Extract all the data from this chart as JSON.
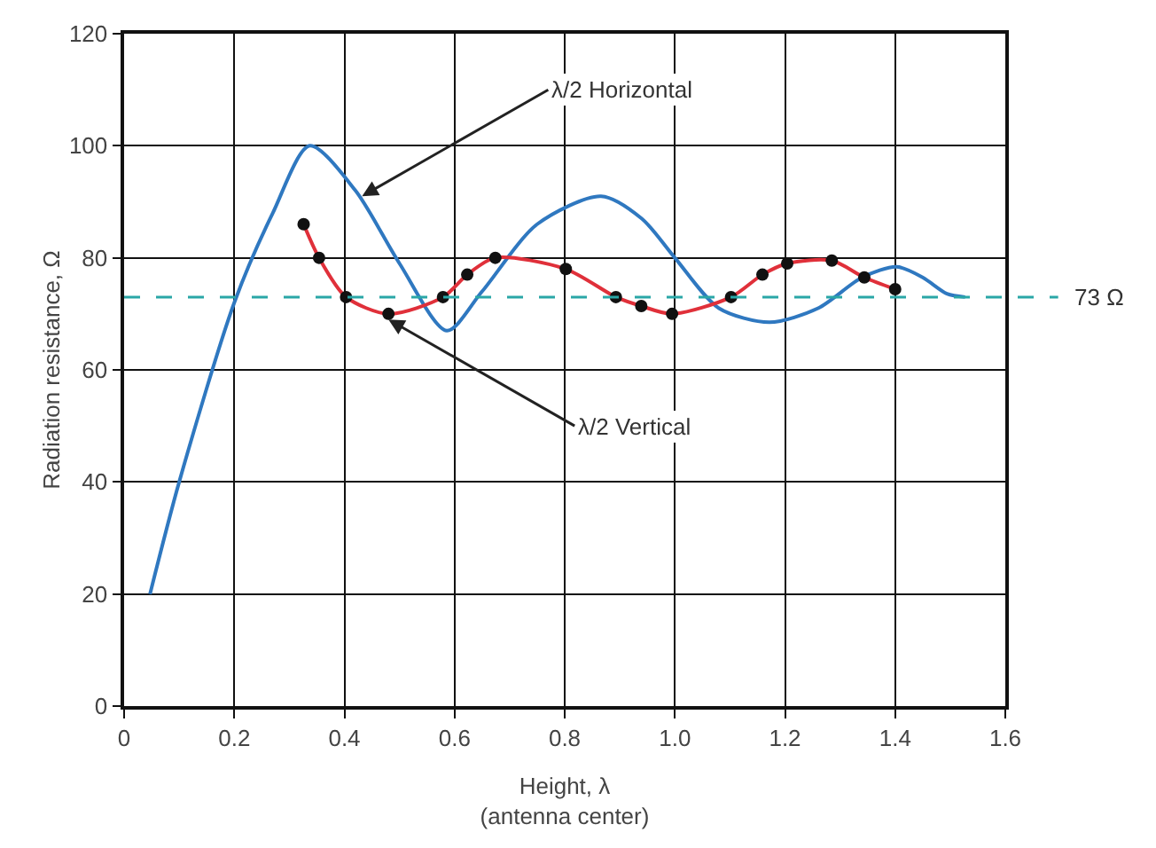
{
  "chart_data": {
    "type": "line",
    "xlabel": "Height, λ\n(antenna center)",
    "ylabel": "Radiation resistance, Ω",
    "xlim": [
      0,
      1.6
    ],
    "ylim": [
      0,
      120
    ],
    "xticks": [
      0,
      0.2,
      0.4,
      0.6,
      0.8,
      {
        "value": 1,
        "label": "1.0"
      },
      1.2,
      1.4,
      1.6
    ],
    "yticks": [
      0,
      20,
      40,
      60,
      80,
      100,
      120
    ],
    "grid": true,
    "series": [
      {
        "marker": "none",
        "color": "#2f78c0",
        "x": [
          0.047,
          0.1,
          0.2,
          0.27,
          0.337,
          0.42,
          0.5,
          0.586,
          0.65,
          0.75,
          0.866,
          0.94,
          1.0,
          1.08,
          1.172,
          1.26,
          1.34,
          1.403,
          1.45,
          1.494,
          1.527
        ],
        "values": [
          20,
          40,
          72,
          88,
          100,
          92,
          79,
          67,
          74,
          86,
          91,
          87,
          80,
          71,
          68.5,
          71,
          76.5,
          78.4,
          76.5,
          73.6,
          73
        ]
      },
      {
        "marker": "circle",
        "color": "#e0303a",
        "x": [
          0.326,
          0.354,
          0.403,
          0.48,
          0.579,
          0.623,
          0.674,
          0.802,
          0.893,
          0.939,
          0.995,
          1.102,
          1.159,
          1.204,
          1.285,
          1.344,
          1.4
        ],
        "values": [
          86,
          80,
          73,
          70,
          73,
          77,
          80,
          78,
          73,
          71.4,
          70,
          73,
          77,
          79,
          79.5,
          76.5,
          74.4
        ]
      }
    ],
    "ref_lines": [
      {
        "axis": "y",
        "value": 73,
        "label": "73 Ω",
        "color": "#2aa7a7",
        "line_style": "dashed"
      }
    ],
    "annotations": [
      {
        "text": "λ/2 Horizontal",
        "x": 0.432,
        "y": 91
      },
      {
        "text": "λ/2 Vertical",
        "x": 0.48,
        "y": 69
      }
    ]
  }
}
